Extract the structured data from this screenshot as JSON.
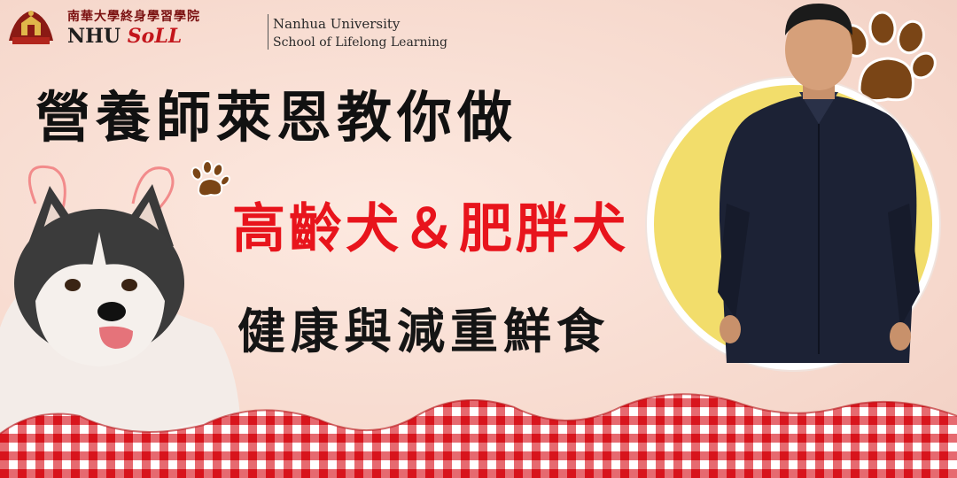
{
  "header": {
    "school_cn": "南華大學終身學習學院",
    "abbr_nhu": "NHU",
    "abbr_soll": "SoLL",
    "school_en_1": "Nanhua University",
    "school_en_2": "School of Lifelong Learning"
  },
  "headline": {
    "line1": "營養師萊恩教你做",
    "line2": "高齡犬＆肥胖犬",
    "line3": "健康與減重鮮食"
  },
  "colors": {
    "background": "#f8ddd2",
    "accent_red": "#e8141c",
    "circle_yellow": "#f2dd6b",
    "paw_brown": "#7a4516",
    "cloth_red": "#d8141c"
  },
  "icons": [
    "university-seal-icon",
    "paw-print-icon",
    "paw-print-icon"
  ]
}
